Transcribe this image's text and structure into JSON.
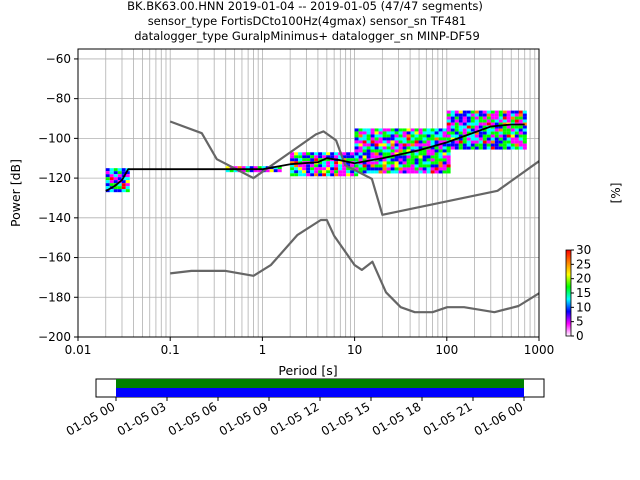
{
  "chart_data": {
    "type": "scatter",
    "title": [
      "BK.BK63.00.HNN   2019-01-04 -- 2019-01-05  (47/47 segments)",
      "sensor_type FortisDCto100Hz(4gmax) sensor_sn TF481",
      "datalogger_type GuralpMinimus+ datalogger_sn MINP-DF59"
    ],
    "xlabel": "Period [s]",
    "ylabel": "Power [dB]",
    "xscale": "log",
    "xlim": [
      0.01,
      1000
    ],
    "ylim": [
      -200,
      -55
    ],
    "xticks": [
      "0.01",
      "0.1",
      "1",
      "10",
      "100",
      "1000"
    ],
    "yticks": [
      "−60",
      "−80",
      "−100",
      "−120",
      "−140",
      "−160",
      "−180",
      "−200"
    ],
    "ytick_values": [
      -60,
      -80,
      -100,
      -120,
      -140,
      -160,
      -180,
      -200
    ],
    "grid": true,
    "colorbar": {
      "label": "[%]",
      "range": [
        0,
        30
      ],
      "ticks": [
        "0",
        "5",
        "10",
        "15",
        "20",
        "25",
        "30"
      ],
      "colors": [
        "#ffffff",
        "#ff00ff",
        "#0000ff",
        "#00ffff",
        "#00ff00",
        "#ffff00",
        "#ff8000",
        "#ff0000"
      ]
    },
    "series": [
      {
        "role": "noise_model_high",
        "color": "#666666",
        "x": [
          0.1,
          0.22,
          0.32,
          0.8,
          3.8,
          4.6,
          6.3,
          7.9,
          15.4,
          20,
          354.8,
          1000
        ],
        "y": [
          -91.5,
          -97.4,
          -110.5,
          -120,
          -98,
          -96.5,
          -101,
          -113.5,
          -120.4,
          -138.5,
          -126.4,
          -111.5
        ]
      },
      {
        "role": "noise_model_low",
        "color": "#666666",
        "x": [
          0.1,
          0.17,
          0.4,
          0.8,
          1.24,
          2.4,
          4.3,
          5,
          6,
          10,
          12,
          15.6,
          21.9,
          31.6,
          45,
          70,
          101,
          154,
          328,
          600,
          1000
        ],
        "y": [
          -168,
          -166.7,
          -166.7,
          -169.2,
          -163.7,
          -148.6,
          -141.1,
          -141.1,
          -149,
          -163.8,
          -166.2,
          -162.1,
          -177.5,
          -185,
          -187.5,
          -187.5,
          -185,
          -185,
          -187.5,
          -184.4,
          -178
        ]
      },
      {
        "role": "psd_mode",
        "color": "#000000",
        "x": [
          0.02,
          0.025,
          0.03,
          0.035,
          0.05,
          0.1,
          0.3,
          1,
          2,
          4,
          5,
          7,
          10,
          20,
          50,
          100,
          200,
          300,
          500,
          700
        ],
        "y": [
          -126.5,
          -124,
          -121,
          -115.5,
          -115.5,
          -115.5,
          -115.5,
          -115.5,
          -113,
          -112,
          -110,
          -111,
          -112.5,
          -110,
          -106,
          -102,
          -97,
          -94,
          -93,
          -93
        ]
      }
    ],
    "probability_bands": [
      {
        "x_range": [
          0.02,
          0.035
        ],
        "y_min": -127,
        "y_max": -115
      },
      {
        "x_range": [
          0.4,
          1.5
        ],
        "y_min": -117,
        "y_max": -114
      },
      {
        "x_range": [
          2,
          10
        ],
        "y_min": -119,
        "y_max": -107
      },
      {
        "x_range": [
          10,
          100
        ],
        "y_min": -117,
        "y_max": -95
      },
      {
        "x_range": [
          100,
          700
        ],
        "y_min": -105,
        "y_max": -86
      }
    ]
  },
  "timeline": {
    "ticks": [
      "01-05 00",
      "01-05 03",
      "01-05 06",
      "01-05 09",
      "01-05 12",
      "01-05 15",
      "01-05 18",
      "01-05 21",
      "01-06 00"
    ],
    "coverage": [
      0,
      1
    ],
    "bar_colors": {
      "top": "#008000",
      "bottom": "#0000ff"
    }
  }
}
